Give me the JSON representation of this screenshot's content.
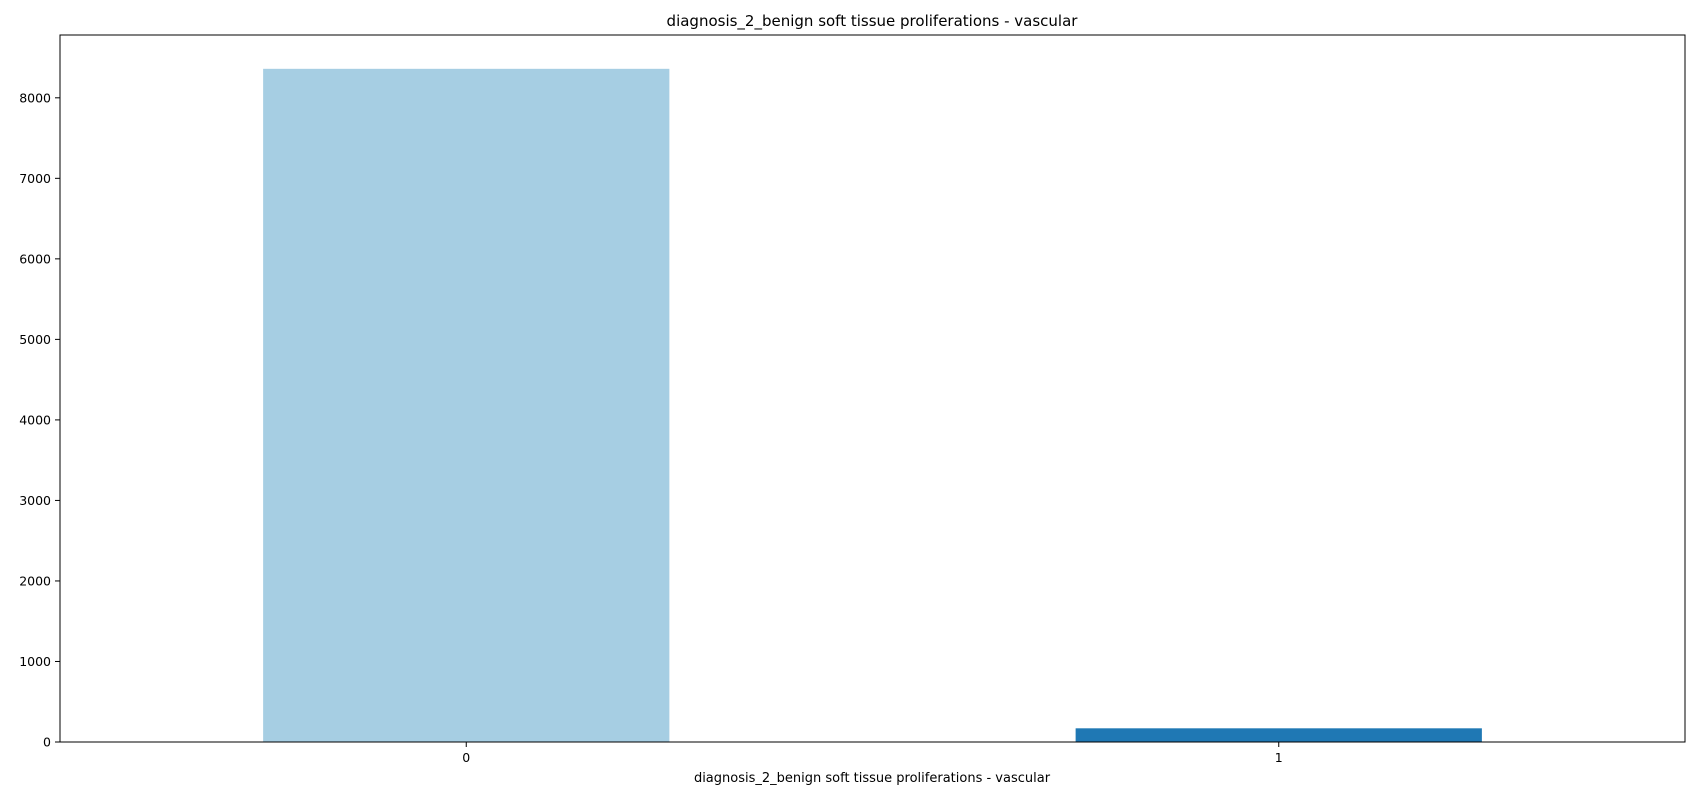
{
  "chart_data": {
    "type": "bar",
    "title": "diagnosis_2_benign soft tissue proliferations - vascular",
    "xlabel": "diagnosis_2_benign soft tissue proliferations - vascular",
    "ylabel": "",
    "categories": [
      "0",
      "1"
    ],
    "values": [
      8360,
      170
    ],
    "colors": [
      "#a6cee3",
      "#1f78b4"
    ],
    "ylim": [
      0,
      8780
    ],
    "yticks": [
      0,
      1000,
      2000,
      3000,
      4000,
      5000,
      6000,
      7000,
      8000
    ],
    "ytick_labels": [
      "0",
      "1000",
      "2000",
      "3000",
      "4000",
      "5000",
      "6000",
      "7000",
      "8000"
    ],
    "grid": false,
    "legend": "none"
  }
}
